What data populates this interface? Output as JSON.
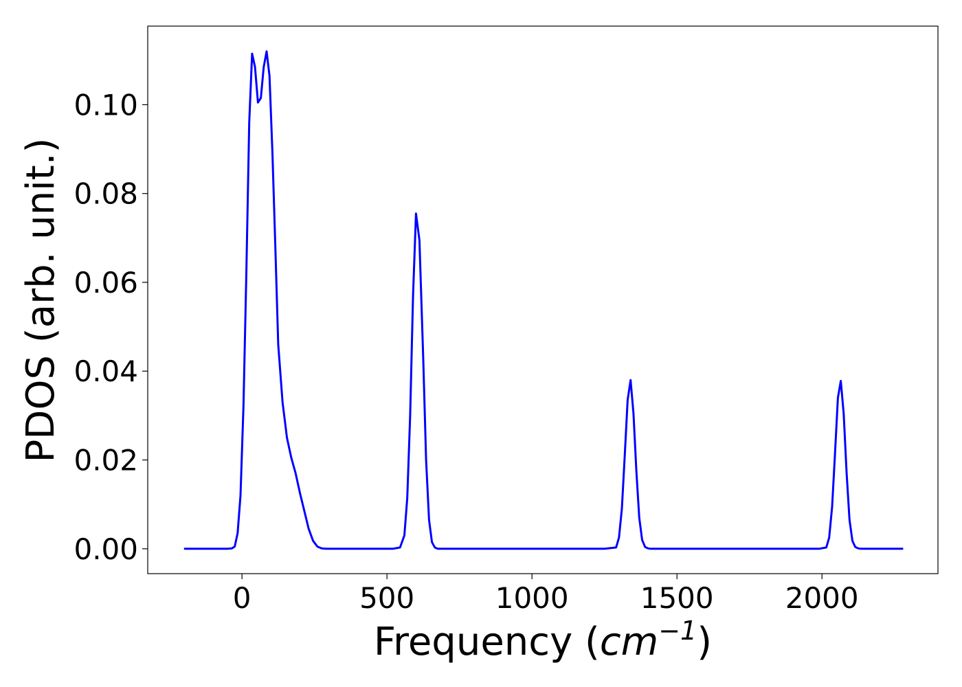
{
  "chart_data": {
    "type": "line",
    "title": "",
    "xlabel": "Frequency",
    "xlabel_paren_open": " (",
    "xlabel_math": "cm",
    "xlabel_sup": "−1",
    "xlabel_paren_close": ")",
    "ylabel": "PDOS (arb. unit.)",
    "xlim": [
      -325,
      2400
    ],
    "ylim": [
      -0.0056,
      0.1177
    ],
    "xticks": [
      0,
      500,
      1000,
      1500,
      2000
    ],
    "xtick_labels": [
      "0",
      "500",
      "1000",
      "1500",
      "2000"
    ],
    "yticks": [
      0.0,
      0.02,
      0.04,
      0.06,
      0.08,
      0.1
    ],
    "ytick_labels": [
      "0.00",
      "0.02",
      "0.04",
      "0.06",
      "0.08",
      "0.10"
    ],
    "grid": false,
    "legend": "none",
    "series": [
      {
        "color": "#0000ff",
        "x": [
          -200,
          -50,
          -35,
          -25,
          -15,
          -5,
          5,
          15,
          25,
          35,
          45,
          55,
          65,
          75,
          85,
          95,
          105,
          115,
          125,
          140,
          155,
          170,
          185,
          200,
          215,
          230,
          245,
          260,
          275,
          290,
          300,
          520,
          545,
          560,
          570,
          580,
          590,
          600,
          612,
          625,
          635,
          645,
          655,
          665,
          675,
          685,
          700,
          1250,
          1290,
          1300,
          1310,
          1320,
          1330,
          1340,
          1350,
          1360,
          1370,
          1380,
          1390,
          1400,
          1410,
          1420,
          1435,
          1990,
          2015,
          2025,
          2035,
          2045,
          2055,
          2065,
          2075,
          2085,
          2095,
          2105,
          2115,
          2125,
          2135,
          2145,
          2160,
          2280
        ],
        "y": [
          0.0,
          0.0,
          0.0001,
          0.0005,
          0.0035,
          0.012,
          0.032,
          0.062,
          0.096,
          0.1115,
          0.1085,
          0.1005,
          0.1015,
          0.1085,
          0.112,
          0.1065,
          0.089,
          0.068,
          0.046,
          0.033,
          0.025,
          0.0205,
          0.017,
          0.0125,
          0.0085,
          0.0045,
          0.0018,
          0.0005,
          0.0001,
          0.0,
          0.0,
          0.0,
          0.0003,
          0.003,
          0.0115,
          0.03,
          0.057,
          0.0755,
          0.0695,
          0.043,
          0.02,
          0.0065,
          0.0015,
          0.0003,
          0.0,
          0.0,
          0.0,
          0.0,
          0.0003,
          0.0025,
          0.009,
          0.021,
          0.0335,
          0.038,
          0.0305,
          0.0175,
          0.007,
          0.002,
          0.0004,
          0.0001,
          0.0,
          0.0,
          0.0,
          0.0,
          0.0003,
          0.0025,
          0.0095,
          0.0215,
          0.034,
          0.0378,
          0.0305,
          0.017,
          0.0065,
          0.0018,
          0.0004,
          0.0001,
          0.0,
          0.0,
          0.0,
          0.0
        ]
      }
    ]
  }
}
